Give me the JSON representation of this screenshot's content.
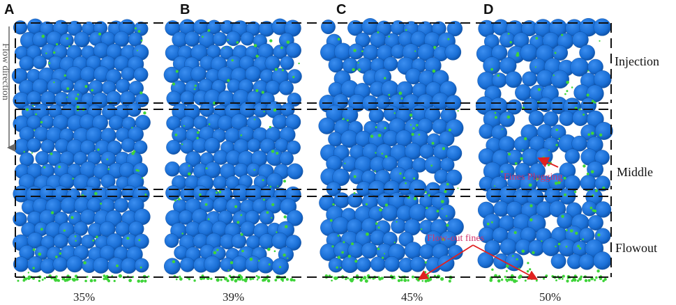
{
  "panels": [
    {
      "letter": "A",
      "porosity": "35%"
    },
    {
      "letter": "B",
      "porosity": "39%"
    },
    {
      "letter": "C",
      "porosity": "45%"
    },
    {
      "letter": "D",
      "porosity": "50%"
    }
  ],
  "zones": {
    "injection": "Injection",
    "middle": "Middle",
    "flowout": "Flowout"
  },
  "flow_direction": "Flow direction",
  "annotations": {
    "fines_plugging": "Fines Plugging",
    "flow_out_fines": "Flow-out fines"
  },
  "colors": {
    "particle": "#1a6fd6",
    "particle_dark": "#0f56b0",
    "fines": "#3fd43a",
    "annotation": "#d0316a",
    "arrow": "#e02020",
    "boundary": "#111111"
  }
}
